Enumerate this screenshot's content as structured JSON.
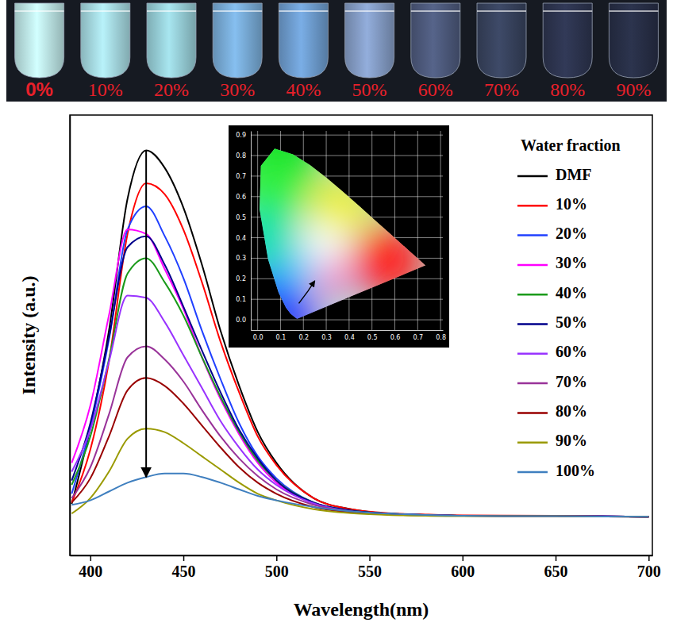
{
  "photo": {
    "labels": [
      "0%",
      "10%",
      "20%",
      "30%",
      "40%",
      "50%",
      "60%",
      "70%",
      "80%",
      "90%"
    ]
  },
  "chart_data": [
    {
      "type": "line",
      "xlabel": "Wavelength(nm)",
      "ylabel": "Intensity (a.u.)",
      "legend_title": "Water fraction",
      "legend": "top-right",
      "tick_labels": "x",
      "xlim": [
        389,
        702
      ],
      "ylim": [
        0,
        100
      ],
      "xticks": [
        400,
        450,
        500,
        550,
        600,
        650,
        700
      ],
      "x": [
        390,
        400,
        410,
        420,
        430,
        440,
        450,
        460,
        470,
        480,
        490,
        500,
        520,
        540,
        560,
        580,
        600,
        650,
        700
      ],
      "series": [
        {
          "name": "DMF",
          "color": "#000000",
          "values": [
            11.7,
            29,
            51,
            81,
            92,
            88,
            79,
            66,
            51,
            38.5,
            28,
            21,
            13,
            10.5,
            9.5,
            9.2,
            9,
            9,
            8.8
          ]
        },
        {
          "name": "10%",
          "color": "#ff0000",
          "values": [
            12,
            24,
            44,
            73,
            84.5,
            82,
            74,
            62,
            48.5,
            37,
            27,
            20.5,
            13,
            10.5,
            9.6,
            9.3,
            9.1,
            9,
            8.8
          ]
        },
        {
          "name": "20%",
          "color": "#2040ff",
          "values": [
            14,
            29,
            49,
            74,
            79.3,
            72.5,
            63,
            51,
            40,
            30,
            22.5,
            17.5,
            12,
            10.2,
            9.5,
            9.2,
            9,
            9,
            8.8
          ]
        },
        {
          "name": "30%",
          "color": "#ff00ff",
          "values": [
            21,
            34,
            54.5,
            74,
            73,
            65,
            56,
            45,
            35.5,
            27.5,
            21,
            16.5,
            11.8,
            10,
            9.4,
            9.2,
            9,
            9,
            8.8
          ]
        },
        {
          "name": "40%",
          "color": "#1a9a1a",
          "values": [
            16,
            27,
            44.5,
            64,
            67.5,
            62,
            54.5,
            45,
            36,
            28,
            21.5,
            17,
            12,
            10.2,
            9.5,
            9.2,
            9,
            9,
            8.8
          ]
        },
        {
          "name": "50%",
          "color": "#00008b",
          "values": [
            17,
            30,
            49.5,
            70,
            72.5,
            66,
            56.5,
            46.5,
            37,
            28.5,
            22,
            17,
            12,
            10.2,
            9.5,
            9.2,
            9,
            9,
            8.8
          ]
        },
        {
          "name": "60%",
          "color": "#9933ff",
          "values": [
            19,
            28.5,
            44,
            59,
            58.5,
            53,
            45.5,
            38,
            30.5,
            24.5,
            19.5,
            16,
            11.8,
            10,
            9.4,
            9.2,
            9,
            9,
            8.8
          ]
        },
        {
          "name": "70%",
          "color": "#993399",
          "values": [
            13,
            20,
            32,
            45,
            47.5,
            44.5,
            39.5,
            33,
            27,
            22,
            18,
            15,
            11.5,
            10,
            9.4,
            9.1,
            9,
            8.9,
            8.8
          ]
        },
        {
          "name": "80%",
          "color": "#990000",
          "values": [
            12,
            17.5,
            27,
            37.5,
            40.3,
            38.5,
            34.5,
            29.5,
            24.5,
            20,
            16.5,
            14,
            11,
            9.8,
            9.3,
            9.1,
            9,
            8.9,
            8.8
          ]
        },
        {
          "name": "90%",
          "color": "#9a9a00",
          "values": [
            9.5,
            13,
            19,
            26.5,
            28.8,
            28,
            25.5,
            22.5,
            19.5,
            16.5,
            14,
            12.5,
            10.5,
            9.6,
            9.2,
            9,
            8.9,
            8.9,
            8.8
          ]
        },
        {
          "name": "100%",
          "color": "#3f7fbf",
          "values": [
            11.5,
            12.5,
            14.5,
            16.5,
            17.8,
            18.6,
            18.6,
            17.8,
            16.5,
            15,
            13.5,
            12.5,
            11,
            10,
            9.5,
            9.2,
            9,
            8.9,
            8.8
          ]
        }
      ]
    },
    {
      "type": "chromaticity",
      "grid": true,
      "xlim": [
        -0.03,
        0.81
      ],
      "ylim": [
        -0.05,
        0.92
      ],
      "xticks": [
        {
          "value": 0,
          "label": "0.0"
        },
        0.1,
        0.2,
        0.3,
        0.4,
        0.5,
        0.6,
        0.7,
        0.8
      ],
      "yticks": [
        {
          "value": 0,
          "label": "0.0"
        },
        0.1,
        0.2,
        0.3,
        0.4,
        0.5,
        0.6,
        0.7,
        0.8,
        0.9
      ],
      "gamut": {
        "x": [
          0.1741,
          0.1736,
          0.1714,
          0.1666,
          0.1566,
          0.144,
          0.1241,
          0.0913,
          0.0454,
          0.0082,
          0.0139,
          0.0743,
          0.1547,
          0.2296,
          0.3016,
          0.3731,
          0.4441,
          0.5125,
          0.5752,
          0.627,
          0.6658,
          0.6915,
          0.7079,
          0.7347
        ],
        "y": [
          0.005,
          0.0049,
          0.0051,
          0.0089,
          0.0177,
          0.0297,
          0.0578,
          0.1327,
          0.295,
          0.5384,
          0.7502,
          0.8338,
          0.8059,
          0.7543,
          0.6923,
          0.6245,
          0.5547,
          0.4866,
          0.4242,
          0.3725,
          0.334,
          0.3083,
          0.292,
          0.2653
        ]
      },
      "series": [
        {
          "color": "#000000",
          "marker": "arrow",
          "x": [
            0.18,
            0.2,
            0.22,
            0.25
          ],
          "values": [
            0.08,
            0.11,
            0.14,
            0.19
          ]
        }
      ]
    }
  ]
}
